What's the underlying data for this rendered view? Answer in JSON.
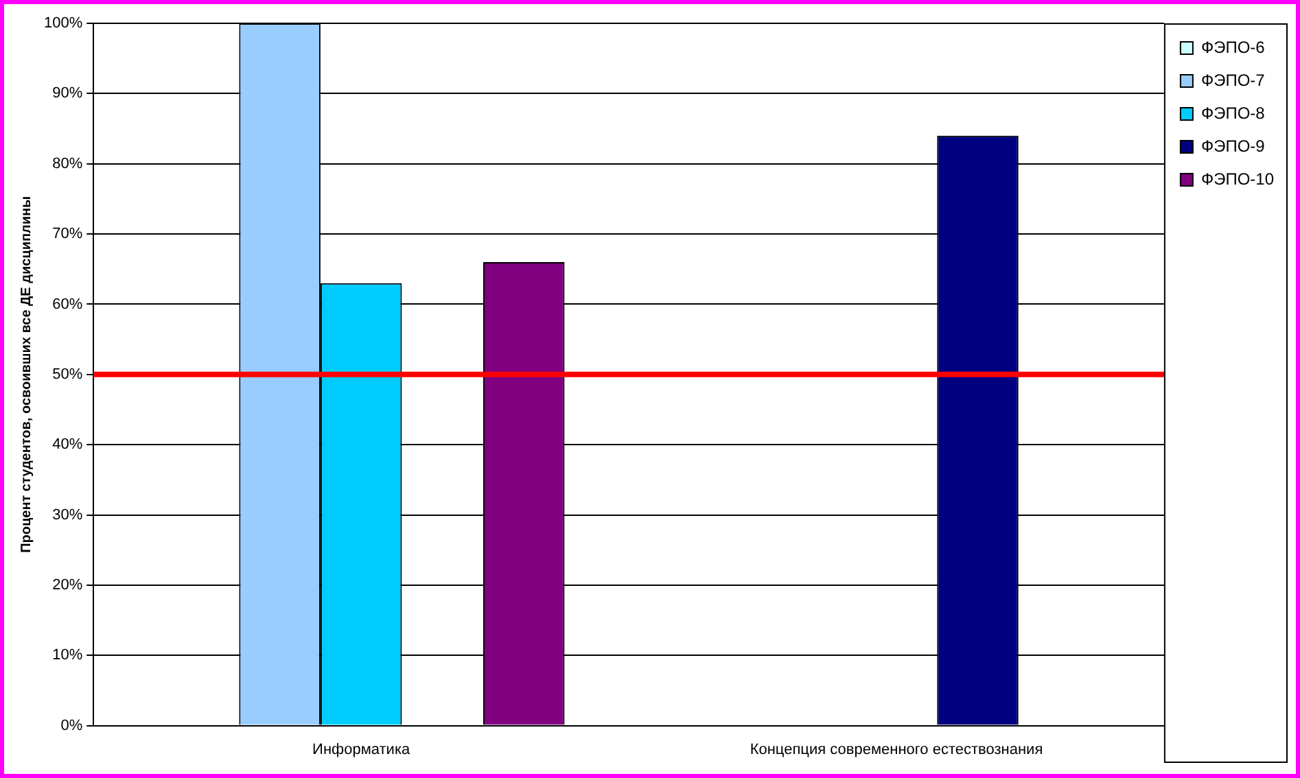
{
  "chart_data": {
    "type": "bar",
    "ylabel": "Процент студентов, освоивших все ДЕ дисциплины",
    "categories": [
      "Информатика",
      "Концепция современного естествознания"
    ],
    "series": [
      {
        "name": "ФЭПО-6",
        "color": "#ccffff",
        "values": [
          null,
          null
        ]
      },
      {
        "name": "ФЭПО-7",
        "color": "#99ccff",
        "values": [
          100,
          null
        ]
      },
      {
        "name": "ФЭПО-8",
        "color": "#00ccff",
        "values": [
          63,
          null
        ]
      },
      {
        "name": "ФЭПО-9",
        "color": "#000080",
        "values": [
          null,
          84
        ]
      },
      {
        "name": "ФЭПО-10",
        "color": "#800080",
        "values": [
          66,
          null
        ]
      }
    ],
    "ylim": [
      0,
      100
    ],
    "yticks": [
      {
        "value": 0,
        "label": "0%"
      },
      {
        "value": 10,
        "label": "10%"
      },
      {
        "value": 20,
        "label": "20%"
      },
      {
        "value": 30,
        "label": "30%"
      },
      {
        "value": 40,
        "label": "40%"
      },
      {
        "value": 50,
        "label": "50%"
      },
      {
        "value": 60,
        "label": "60%"
      },
      {
        "value": 70,
        "label": "70%"
      },
      {
        "value": 80,
        "label": "80%"
      },
      {
        "value": 90,
        "label": "90%"
      },
      {
        "value": 100,
        "label": "100%"
      }
    ],
    "ref_lines": [
      {
        "axis": "y",
        "value": 50,
        "color": "#ff0000"
      }
    ],
    "grid": "y",
    "legend": "right"
  }
}
